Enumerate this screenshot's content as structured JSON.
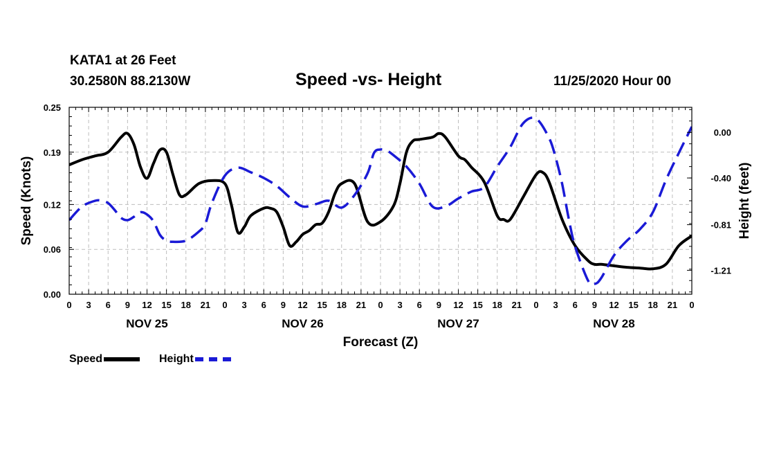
{
  "header": {
    "station": "KATA1 at 26 Feet",
    "coords": "30.2580N 88.2130W",
    "title": "Speed -vs- Height",
    "stamp": "11/25/2020 Hour 00"
  },
  "legend": {
    "speed_label": "Speed",
    "height_label": "Height"
  },
  "colors": {
    "speed": "#000000",
    "height": "#1a1ad6",
    "grid": "#bdbdbd"
  },
  "chart_data": {
    "type": "line",
    "title": "Speed -vs- Height",
    "xlabel": "Forecast (Z)",
    "ylabel": "Speed (Knots)",
    "y2label": "Height (feet)",
    "xlim": [
      0,
      96
    ],
    "ylim": [
      0,
      0.25
    ],
    "y2lim": [
      -1.42,
      0.22
    ],
    "x_ticks": [
      0,
      3,
      6,
      9,
      12,
      15,
      18,
      21,
      24,
      27,
      30,
      33,
      36,
      39,
      42,
      45,
      48,
      51,
      54,
      57,
      60,
      63,
      66,
      69,
      72,
      75,
      78,
      81,
      84,
      87,
      90,
      93,
      96
    ],
    "x_tick_labels": [
      "0",
      "3",
      "6",
      "9",
      "12",
      "15",
      "18",
      "21",
      "0",
      "3",
      "6",
      "9",
      "12",
      "15",
      "18",
      "21",
      "0",
      "3",
      "6",
      "9",
      "12",
      "15",
      "18",
      "21",
      "0",
      "3",
      "6",
      "9",
      "12",
      "15",
      "18",
      "21",
      "0"
    ],
    "day_labels": [
      {
        "x": 12,
        "label": "NOV 25"
      },
      {
        "x": 36,
        "label": "NOV 26"
      },
      {
        "x": 60,
        "label": "NOV 27"
      },
      {
        "x": 84,
        "label": "NOV 28"
      }
    ],
    "y_ticks": [
      0.0,
      0.06,
      0.12,
      0.19,
      0.25
    ],
    "y_tick_labels": [
      "0.00",
      "0.06",
      "0.12",
      "0.19",
      "0.25"
    ],
    "y2_ticks": [
      0.0,
      -0.4,
      -0.81,
      -1.21
    ],
    "y2_tick_labels": [
      "0.00",
      "-0.40",
      "-0.81",
      "-1.21"
    ],
    "series": [
      {
        "name": "Speed",
        "axis": "left",
        "style": "solid",
        "x": [
          0,
          2,
          4,
          6,
          8,
          9,
          10,
          11,
          12,
          13,
          14,
          15,
          16,
          17,
          18,
          20,
          22,
          24,
          25,
          26,
          27,
          28,
          30,
          31,
          32,
          33,
          34,
          35,
          36,
          37,
          38,
          39,
          40,
          41,
          42,
          44,
          46,
          48,
          50,
          51,
          52,
          53,
          54,
          56,
          57,
          58,
          60,
          61,
          62,
          64,
          66,
          67,
          68,
          70,
          72,
          73,
          74,
          76,
          78,
          80,
          81,
          82,
          84,
          86,
          88,
          90,
          92,
          94,
          96
        ],
        "values": [
          0.173,
          0.18,
          0.185,
          0.19,
          0.21,
          0.215,
          0.2,
          0.17,
          0.155,
          0.175,
          0.193,
          0.19,
          0.16,
          0.133,
          0.133,
          0.148,
          0.152,
          0.148,
          0.12,
          0.083,
          0.09,
          0.105,
          0.115,
          0.115,
          0.11,
          0.09,
          0.065,
          0.07,
          0.08,
          0.085,
          0.093,
          0.095,
          0.11,
          0.135,
          0.148,
          0.148,
          0.097,
          0.097,
          0.118,
          0.148,
          0.19,
          0.205,
          0.207,
          0.21,
          0.215,
          0.21,
          0.185,
          0.18,
          0.17,
          0.15,
          0.105,
          0.1,
          0.1,
          0.13,
          0.16,
          0.163,
          0.15,
          0.1,
          0.065,
          0.045,
          0.04,
          0.04,
          0.038,
          0.036,
          0.035,
          0.034,
          0.04,
          0.065,
          0.078
        ]
      },
      {
        "name": "Height",
        "axis": "right",
        "style": "dashed",
        "x": [
          0,
          2,
          4,
          5,
          6,
          7,
          8,
          9,
          10,
          11,
          12,
          13,
          14,
          15,
          16,
          18,
          20,
          21,
          22,
          24,
          26,
          28,
          30,
          32,
          34,
          36,
          38,
          40,
          42,
          44,
          46,
          47,
          48,
          49,
          50,
          52,
          54,
          56,
          58,
          60,
          62,
          64,
          66,
          68,
          70,
          72,
          74,
          75,
          76,
          77,
          78,
          80,
          81,
          82,
          84,
          86,
          88,
          90,
          92,
          94,
          96
        ],
        "values": [
          -0.77,
          -0.65,
          -0.6,
          -0.6,
          -0.62,
          -0.68,
          -0.75,
          -0.77,
          -0.74,
          -0.7,
          -0.72,
          -0.78,
          -0.9,
          -0.95,
          -0.96,
          -0.95,
          -0.87,
          -0.8,
          -0.62,
          -0.38,
          -0.31,
          -0.35,
          -0.4,
          -0.47,
          -0.57,
          -0.65,
          -0.63,
          -0.6,
          -0.66,
          -0.55,
          -0.36,
          -0.18,
          -0.15,
          -0.16,
          -0.2,
          -0.3,
          -0.45,
          -0.65,
          -0.65,
          -0.58,
          -0.52,
          -0.48,
          -0.3,
          -0.13,
          0.08,
          0.12,
          -0.05,
          -0.22,
          -0.45,
          -0.75,
          -1.0,
          -1.3,
          -1.33,
          -1.28,
          -1.08,
          -0.95,
          -0.85,
          -0.7,
          -0.42,
          -0.18,
          0.05
        ]
      }
    ]
  }
}
